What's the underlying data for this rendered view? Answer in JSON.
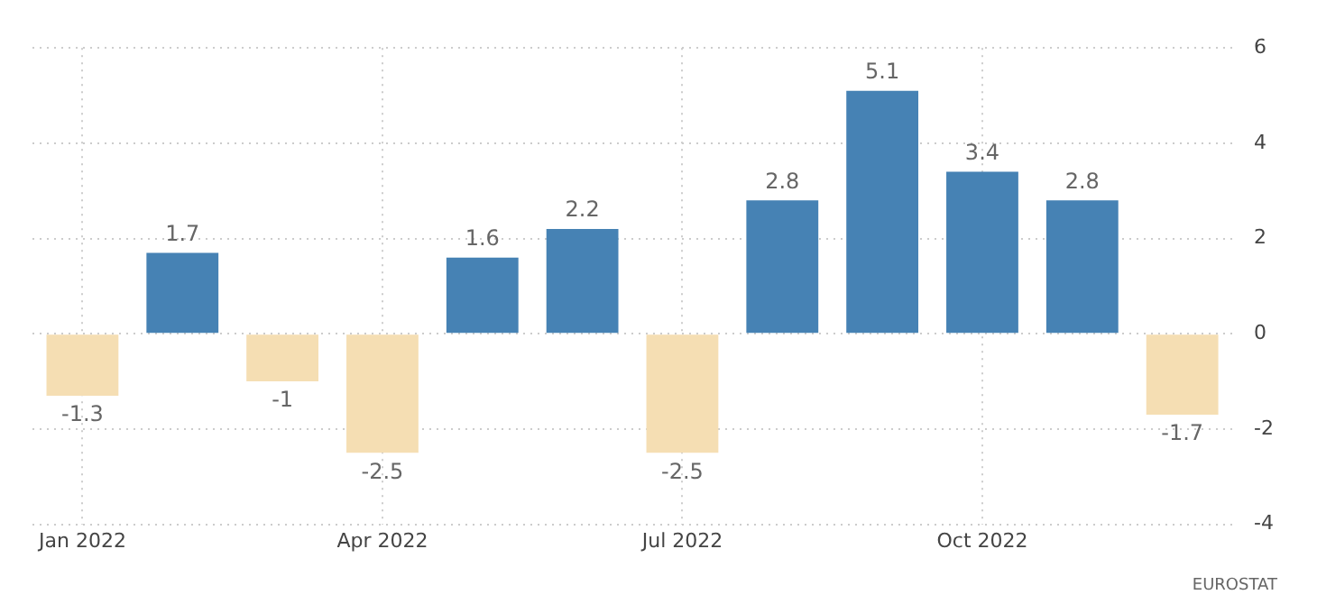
{
  "chart_data": {
    "type": "bar",
    "categories": [
      "Jan 2022",
      null,
      null,
      "Apr 2022",
      null,
      null,
      "Jul 2022",
      null,
      null,
      "Oct 2022",
      null,
      null
    ],
    "values": [
      -1.3,
      1.7,
      -1,
      -2.5,
      1.6,
      2.2,
      -2.5,
      2.8,
      5.1,
      3.4,
      2.8,
      -1.7
    ],
    "colors": [
      "#f5deb3",
      "#4682b4",
      "#f5deb3",
      "#f5deb3",
      "#4682b4",
      "#4682b4",
      "#f5deb3",
      "#4682b4",
      "#4682b4",
      "#4682b4",
      "#4682b4",
      "#f5deb3"
    ],
    "ylim": [
      -4,
      6
    ],
    "yticks": [
      -4,
      -2,
      0,
      2,
      4,
      6
    ],
    "grid": true,
    "data_labels": true,
    "legend": false,
    "annotations": [
      "EUROSTAT"
    ]
  }
}
